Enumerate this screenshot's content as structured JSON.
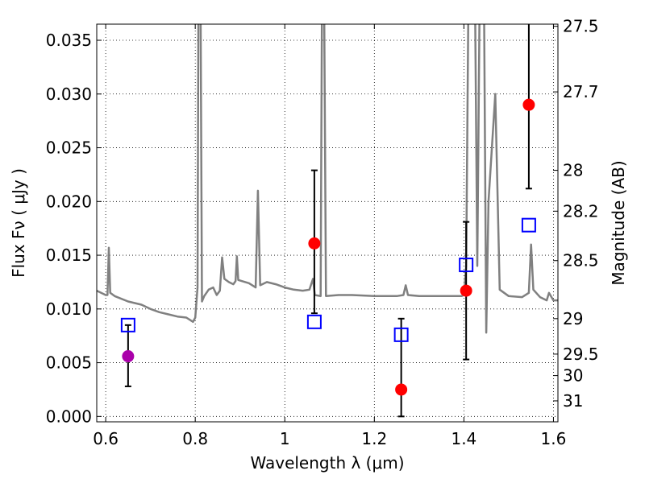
{
  "chart_data": {
    "type": "scatter",
    "xlabel": "Wavelength  λ (μm)",
    "ylabel": "Flux  Fν  ( μJy )",
    "y2label": "Magnitude (AB)",
    "xlim": [
      0.58,
      1.61
    ],
    "ylim": [
      -0.0005,
      0.0365
    ],
    "grid": true,
    "x_ticks": [
      {
        "v": 0.6,
        "label": "0.6"
      },
      {
        "v": 0.8,
        "label": "0.8"
      },
      {
        "v": 1.0,
        "label": "1"
      },
      {
        "v": 1.2,
        "label": "1.2"
      },
      {
        "v": 1.4,
        "label": "1.4"
      },
      {
        "v": 1.6,
        "label": "1.6"
      }
    ],
    "y_ticks": [
      {
        "v": 0.0,
        "label": "0.000"
      },
      {
        "v": 0.005,
        "label": "0.005"
      },
      {
        "v": 0.01,
        "label": "0.010"
      },
      {
        "v": 0.015,
        "label": "0.015"
      },
      {
        "v": 0.02,
        "label": "0.020"
      },
      {
        "v": 0.025,
        "label": "0.025"
      },
      {
        "v": 0.03,
        "label": "0.030"
      },
      {
        "v": 0.035,
        "label": "0.035"
      }
    ],
    "y2_ticks": [
      {
        "label": "27.5",
        "flux": 0.0363
      },
      {
        "label": "27.7",
        "flux": 0.0302
      },
      {
        "label": "28",
        "flux": 0.0229
      },
      {
        "label": "28.2",
        "flux": 0.0191
      },
      {
        "label": "28.5",
        "flux": 0.0145
      },
      {
        "label": "29",
        "flux": 0.0091
      },
      {
        "label": "29.5",
        "flux": 0.0058
      },
      {
        "label": "30",
        "flux": 0.0038
      },
      {
        "label": "31",
        "flux": 0.00145
      }
    ],
    "series": [
      {
        "type": "line",
        "color": "#808080",
        "points": [
          [
            0.58,
            0.0117
          ],
          [
            0.595,
            0.0114
          ],
          [
            0.6,
            0.0113
          ],
          [
            0.604,
            0.0113
          ],
          [
            0.607,
            0.0157
          ],
          [
            0.61,
            0.0115
          ],
          [
            0.62,
            0.0112
          ],
          [
            0.65,
            0.0107
          ],
          [
            0.68,
            0.0104
          ],
          [
            0.7,
            0.01
          ],
          [
            0.72,
            0.0097
          ],
          [
            0.74,
            0.0095
          ],
          [
            0.76,
            0.0093
          ],
          [
            0.78,
            0.0092
          ],
          [
            0.795,
            0.0088
          ],
          [
            0.8,
            0.0092
          ],
          [
            0.805,
            0.012
          ],
          [
            0.807,
            0.038
          ],
          [
            0.812,
            0.038
          ],
          [
            0.815,
            0.0107
          ],
          [
            0.82,
            0.0112
          ],
          [
            0.83,
            0.0118
          ],
          [
            0.84,
            0.012
          ],
          [
            0.848,
            0.0113
          ],
          [
            0.855,
            0.0117
          ],
          [
            0.86,
            0.0148
          ],
          [
            0.865,
            0.0128
          ],
          [
            0.875,
            0.0125
          ],
          [
            0.885,
            0.0123
          ],
          [
            0.89,
            0.0126
          ],
          [
            0.893,
            0.0149
          ],
          [
            0.896,
            0.0127
          ],
          [
            0.92,
            0.0124
          ],
          [
            0.935,
            0.012
          ],
          [
            0.94,
            0.021
          ],
          [
            0.945,
            0.0122
          ],
          [
            0.96,
            0.0125
          ],
          [
            0.98,
            0.0123
          ],
          [
            1.0,
            0.012
          ],
          [
            1.02,
            0.0118
          ],
          [
            1.04,
            0.0117
          ],
          [
            1.055,
            0.0118
          ],
          [
            1.063,
            0.0128
          ],
          [
            1.067,
            0.0113
          ],
          [
            1.08,
            0.0112
          ],
          [
            1.083,
            0.038
          ],
          [
            1.088,
            0.038
          ],
          [
            1.092,
            0.0112
          ],
          [
            1.12,
            0.0113
          ],
          [
            1.15,
            0.0113
          ],
          [
            1.2,
            0.0112
          ],
          [
            1.25,
            0.0112
          ],
          [
            1.265,
            0.0113
          ],
          [
            1.27,
            0.0122
          ],
          [
            1.275,
            0.0113
          ],
          [
            1.3,
            0.0112
          ],
          [
            1.35,
            0.0112
          ],
          [
            1.38,
            0.0112
          ],
          [
            1.395,
            0.0112
          ],
          [
            1.4,
            0.0113
          ],
          [
            1.405,
            0.014
          ],
          [
            1.41,
            0.038
          ],
          [
            1.425,
            0.038
          ],
          [
            1.43,
            0.014
          ],
          [
            1.435,
            0.038
          ],
          [
            1.445,
            0.038
          ],
          [
            1.45,
            0.0078
          ],
          [
            1.455,
            0.02
          ],
          [
            1.47,
            0.03
          ],
          [
            1.48,
            0.0118
          ],
          [
            1.5,
            0.0112
          ],
          [
            1.53,
            0.0111
          ],
          [
            1.545,
            0.0115
          ],
          [
            1.55,
            0.016
          ],
          [
            1.555,
            0.0118
          ],
          [
            1.57,
            0.0111
          ],
          [
            1.585,
            0.0108
          ],
          [
            1.59,
            0.0115
          ],
          [
            1.6,
            0.0108
          ],
          [
            1.61,
            0.0108
          ]
        ]
      },
      {
        "type": "errorbar",
        "color": "#000000",
        "points": [
          {
            "x": 0.65,
            "lo": 0.0028,
            "hi": 0.0085
          },
          {
            "x": 1.066,
            "lo": 0.0096,
            "hi": 0.0229
          },
          {
            "x": 1.26,
            "lo": 0.0,
            "hi": 0.0091
          },
          {
            "x": 1.405,
            "lo": 0.0053,
            "hi": 0.0181
          },
          {
            "x": 1.545,
            "lo": 0.0212,
            "hi": 0.037
          }
        ]
      },
      {
        "type": "square",
        "color": "#0000ff",
        "points": [
          [
            0.65,
            0.0085
          ],
          [
            1.066,
            0.0088
          ],
          [
            1.26,
            0.0076
          ],
          [
            1.405,
            0.0141
          ],
          [
            1.545,
            0.0178
          ]
        ]
      },
      {
        "type": "circle",
        "color": "#ff0000",
        "points": [
          [
            1.066,
            0.0161
          ],
          [
            1.26,
            0.0025
          ],
          [
            1.405,
            0.0117
          ],
          [
            1.545,
            0.029
          ]
        ]
      },
      {
        "type": "circle",
        "color": "#aa00aa",
        "points": [
          [
            0.65,
            0.0056
          ]
        ]
      }
    ]
  }
}
